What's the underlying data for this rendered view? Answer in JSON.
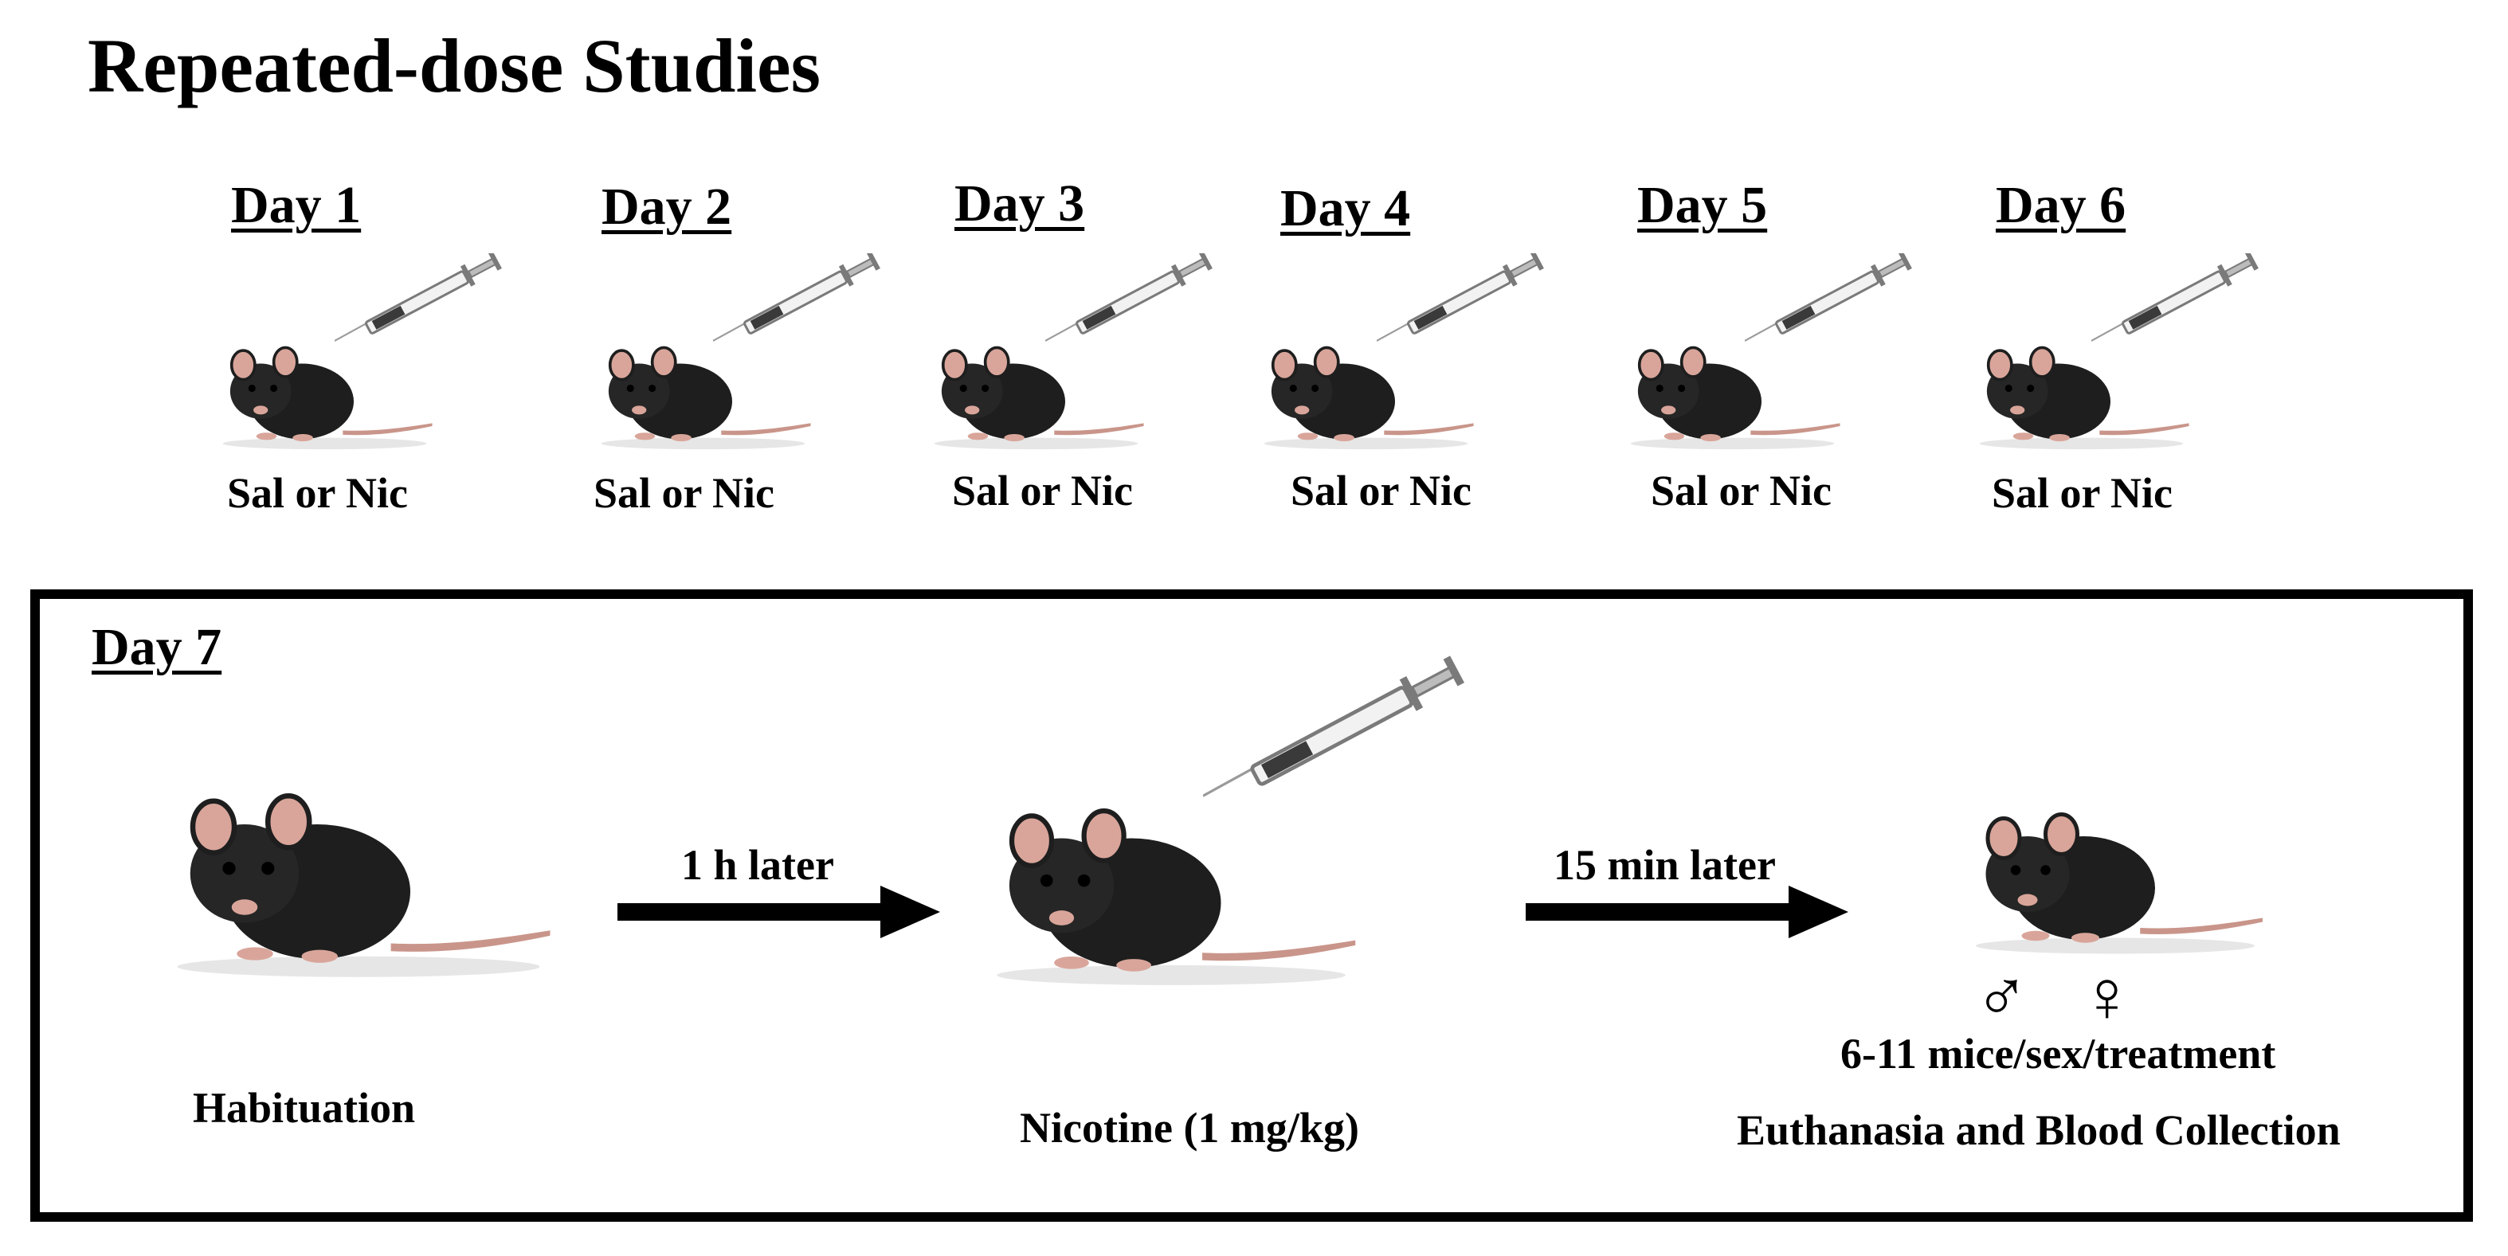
{
  "title": "Repeated-dose Studies",
  "days": [
    {
      "label": "Day 1",
      "treatment": "Sal or Nic"
    },
    {
      "label": "Day 2",
      "treatment": "Sal or Nic"
    },
    {
      "label": "Day 3",
      "treatment": "Sal or Nic"
    },
    {
      "label": "Day 4",
      "treatment": "Sal or Nic"
    },
    {
      "label": "Day 5",
      "treatment": "Sal or Nic"
    },
    {
      "label": "Day 6",
      "treatment": "Sal or Nic"
    }
  ],
  "day7": {
    "label": "Day 7",
    "steps": [
      {
        "caption": "Habituation"
      },
      {
        "caption": "Nicotine (1 mg/kg)"
      },
      {
        "caption": "Euthanasia and Blood Collection"
      }
    ],
    "arrows": [
      {
        "label": "1 h later"
      },
      {
        "label": "15 min later"
      }
    ],
    "sexes": [
      "♂",
      "♀"
    ],
    "group_size": "6-11 mice/sex/treatment"
  },
  "colors": {
    "mouse_body": "#1e1e1e",
    "ear": "#d9a59a",
    "tail": "#c9958a",
    "syringe": "#8a8a8a",
    "line": "#000000"
  }
}
